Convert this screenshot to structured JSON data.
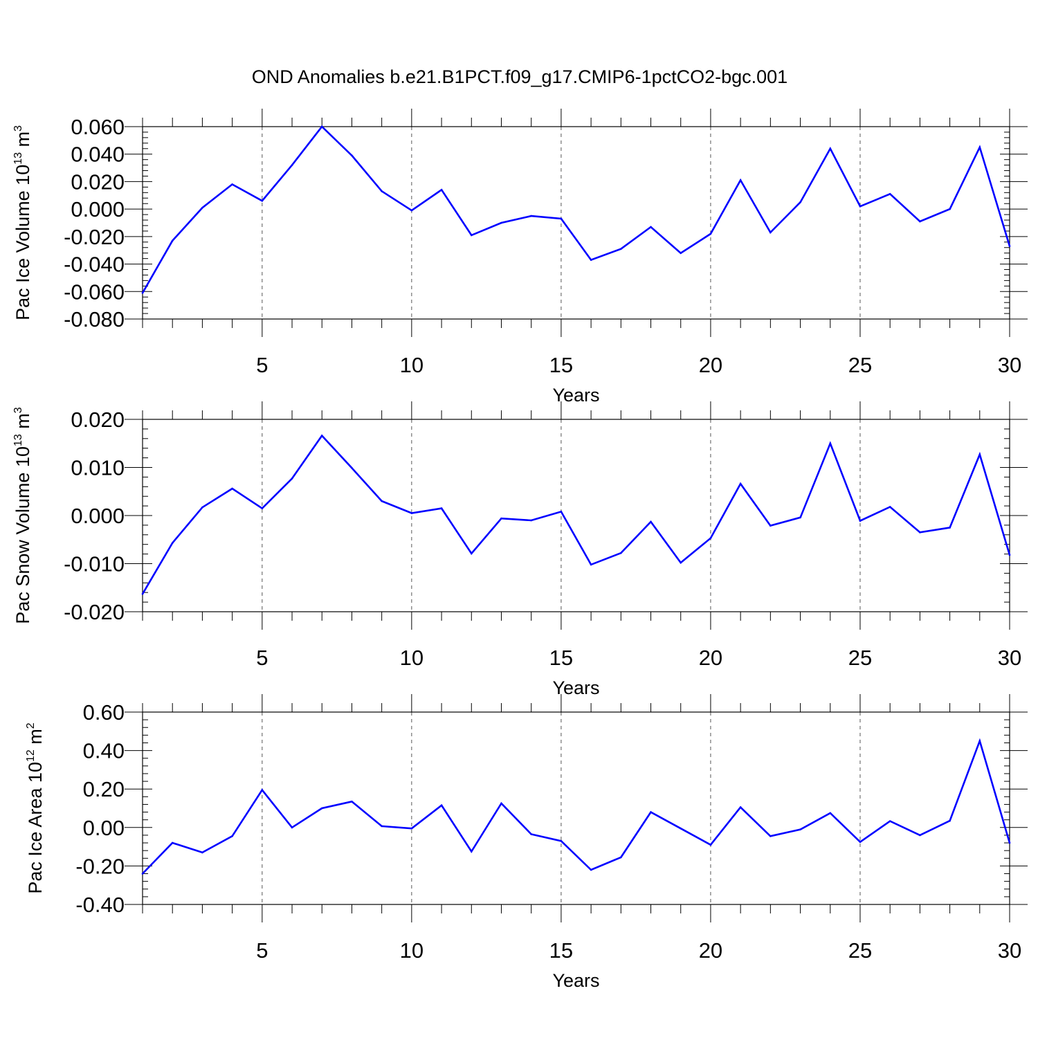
{
  "title": "OND Anomalies b.e21.B1PCT.f09_g17.CMIP6-1pctCO2-bgc.001",
  "colors": {
    "line": "#0000ff",
    "axis": "#000000",
    "grid": "#555555"
  },
  "chart_data": [
    {
      "type": "line",
      "ylabel": {
        "main": "Pac Ice Volume 10",
        "exp": "13",
        "unit": " m",
        "unit_exp": "3"
      },
      "xlabel": "Years",
      "xlim": [
        1,
        30
      ],
      "ylim": [
        -0.08,
        0.06
      ],
      "xticks": [
        5,
        10,
        15,
        20,
        25,
        30
      ],
      "yticks": [
        -0.08,
        -0.06,
        -0.04,
        -0.02,
        0.0,
        0.02,
        0.04,
        0.06
      ],
      "ytick_labels": [
        "-0.080",
        "-0.060",
        "-0.040",
        "-0.020",
        "0.000",
        "0.020",
        "0.040",
        "0.060"
      ],
      "grid": "vertical dashed at major x ticks",
      "x": [
        1,
        2,
        3,
        4,
        5,
        6,
        7,
        8,
        9,
        10,
        11,
        12,
        13,
        14,
        15,
        16,
        17,
        18,
        19,
        20,
        21,
        22,
        23,
        24,
        25,
        26,
        27,
        28,
        29,
        30
      ],
      "values": [
        -0.061,
        -0.023,
        0.001,
        0.018,
        0.006,
        0.032,
        0.06,
        0.039,
        0.013,
        -0.001,
        0.014,
        -0.019,
        -0.01,
        -0.005,
        -0.007,
        -0.037,
        -0.029,
        -0.013,
        -0.032,
        -0.018,
        0.021,
        -0.017,
        0.005,
        0.044,
        0.002,
        0.011,
        -0.009,
        -0.0,
        0.045,
        -0.027
      ]
    },
    {
      "type": "line",
      "ylabel": {
        "main": "Pac Snow Volume 10",
        "exp": "13",
        "unit": " m",
        "unit_exp": "3"
      },
      "xlabel": "Years",
      "xlim": [
        1,
        30
      ],
      "ylim": [
        -0.02,
        0.02
      ],
      "xticks": [
        5,
        10,
        15,
        20,
        25,
        30
      ],
      "yticks": [
        -0.02,
        -0.01,
        0.0,
        0.01,
        0.02
      ],
      "ytick_labels": [
        "-0.020",
        "-0.010",
        "0.000",
        "0.010",
        "0.020"
      ],
      "grid": "vertical dashed at major x ticks",
      "x": [
        1,
        2,
        3,
        4,
        5,
        6,
        7,
        8,
        9,
        10,
        11,
        12,
        13,
        14,
        15,
        16,
        17,
        18,
        19,
        20,
        21,
        22,
        23,
        24,
        25,
        26,
        27,
        28,
        29,
        30
      ],
      "values": [
        -0.0163,
        -0.0057,
        0.0017,
        0.0056,
        0.0015,
        0.0077,
        0.0166,
        0.0099,
        0.003,
        0.0005,
        0.0015,
        -0.0079,
        -0.0006,
        -0.001,
        0.0008,
        -0.0102,
        -0.0078,
        -0.0013,
        -0.0098,
        -0.0047,
        0.0066,
        -0.0021,
        -0.0004,
        0.015,
        -0.0011,
        0.0018,
        -0.0035,
        -0.0025,
        0.0127,
        -0.0082
      ]
    },
    {
      "type": "line",
      "ylabel": {
        "main": "Pac Ice Area 10",
        "exp": "12",
        "unit": " m",
        "unit_exp": "2"
      },
      "xlabel": "Years",
      "xlim": [
        1,
        30
      ],
      "ylim": [
        -0.4,
        0.6
      ],
      "xticks": [
        5,
        10,
        15,
        20,
        25,
        30
      ],
      "yticks": [
        -0.4,
        -0.2,
        0.0,
        0.2,
        0.4,
        0.6
      ],
      "ytick_labels": [
        "-0.40",
        "-0.20",
        "0.00",
        "0.20",
        "0.40",
        "0.60"
      ],
      "grid": "vertical dashed at major x ticks",
      "x": [
        1,
        2,
        3,
        4,
        5,
        6,
        7,
        8,
        9,
        10,
        11,
        12,
        13,
        14,
        15,
        16,
        17,
        18,
        19,
        20,
        21,
        22,
        23,
        24,
        25,
        26,
        27,
        28,
        29,
        30
      ],
      "values": [
        -0.24,
        -0.08,
        -0.13,
        -0.045,
        0.195,
        0.0,
        0.1,
        0.135,
        0.007,
        -0.005,
        0.115,
        -0.125,
        0.125,
        -0.035,
        -0.07,
        -0.22,
        -0.155,
        0.08,
        -0.005,
        -0.09,
        0.105,
        -0.045,
        -0.01,
        0.075,
        -0.075,
        0.033,
        -0.04,
        0.035,
        0.45,
        -0.08
      ]
    }
  ]
}
